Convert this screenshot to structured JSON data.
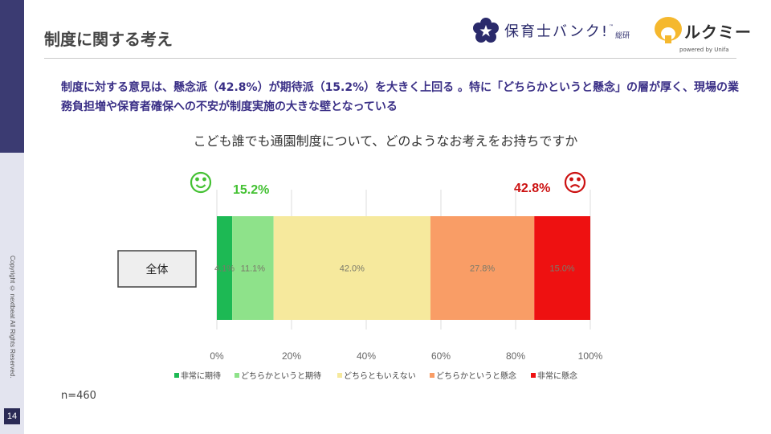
{
  "page": {
    "page_number": "14",
    "copyright": "Copyright © nextbeat All Rights Reserved.",
    "title": "制度に関する考え",
    "headline": "制度に対する意見は、懸念派（42.8%）が期待派（15.2%）を大きく上回る 。特に「どちらかというと懸念」の層が厚く、現場の業務負担増や保育者確保への不安が制度実施の大きな壁となっている",
    "sample_size": "n=460"
  },
  "logos": {
    "hoikushi_bank": "保育士バンク!",
    "hoikushi_bank_tm": "™",
    "hoikushi_bank_sub": "総研",
    "lukumi": "ルクミー",
    "lukumi_sub": "powered by Unifa"
  },
  "colors": {
    "accent": "#3a2f86",
    "positive_total": "#44c133",
    "negative_total": "#cc1111"
  },
  "icons": {
    "positive": "smiley-face-icon",
    "negative": "frowning-face-icon"
  },
  "chart_data": {
    "type": "bar",
    "orientation": "horizontal-stacked-100",
    "title": "こども誰でも通園制度について、どのようなお考えをお持ちですか",
    "categories": [
      "全体"
    ],
    "series": [
      {
        "name": "非常に期待",
        "values": [
          4.1
        ],
        "label": "4.1%",
        "color": "#1db954"
      },
      {
        "name": "どちらかというと期待",
        "values": [
          11.1
        ],
        "label": "11.1%",
        "color": "#8ee28a"
      },
      {
        "name": "どちらともいえない",
        "values": [
          42.0
        ],
        "label": "42.0%",
        "color": "#f6e99d"
      },
      {
        "name": "どちらかというと懸念",
        "values": [
          27.8
        ],
        "label": "27.8%",
        "color": "#f99d66"
      },
      {
        "name": "非常に懸念",
        "values": [
          15.0
        ],
        "label": "15.0%",
        "color": "#ee1111"
      }
    ],
    "annotations": {
      "expect_total": "15.2%",
      "concern_total": "42.8%"
    },
    "xlim": [
      0,
      100
    ],
    "xticks": [
      "0%",
      "20%",
      "40%",
      "60%",
      "80%",
      "100%"
    ],
    "grid": true,
    "legend": "bottom"
  }
}
